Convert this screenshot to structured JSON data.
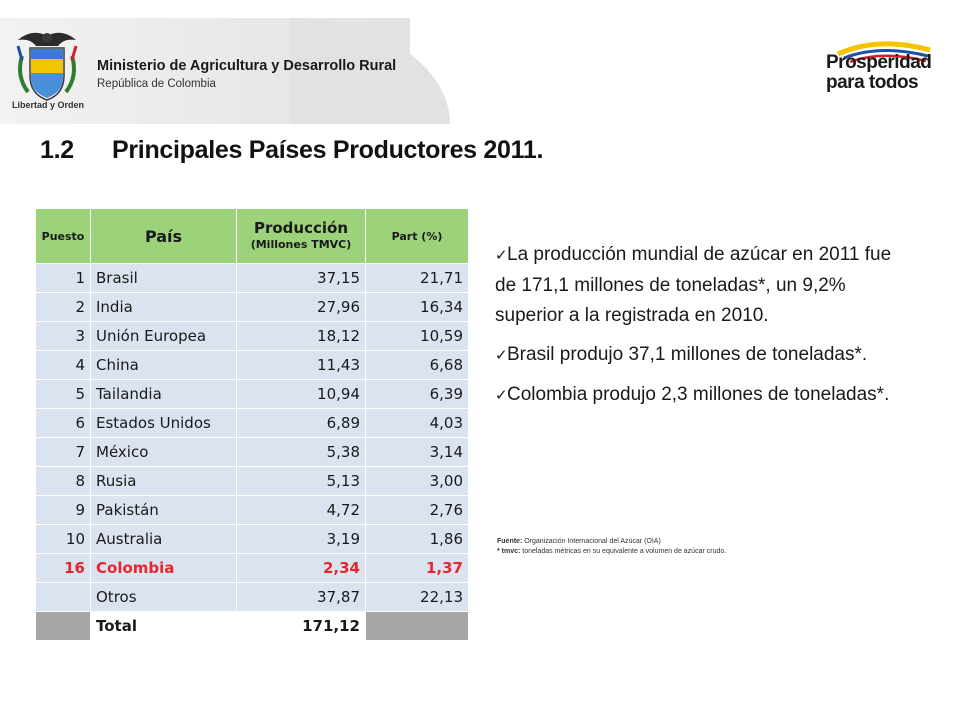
{
  "header": {
    "ministry": "Ministerio de Agricultura y Desarrollo Rural",
    "republic": "República de Colombia",
    "motto": "Libertad y Orden",
    "logo_line1": "Prosperidad",
    "logo_line2": "para todos",
    "colors": {
      "logo_yellow": "#f5c400",
      "logo_blue": "#1d4fa3",
      "logo_red": "#d42027"
    }
  },
  "title": {
    "number": "1.2",
    "text": "Principales Países Productores 2011."
  },
  "table": {
    "headers": {
      "rank": "Puesto",
      "country": "País",
      "production": "Producción",
      "production_unit": "(Millones TMVC)",
      "share": "Part (%)"
    },
    "rows": [
      {
        "rank": "1",
        "country": "Brasil",
        "production": "37,15",
        "share": "21,71"
      },
      {
        "rank": "2",
        "country": "India",
        "production": "27,96",
        "share": "16,34"
      },
      {
        "rank": "3",
        "country": "Unión Europea",
        "production": "18,12",
        "share": "10,59"
      },
      {
        "rank": "4",
        "country": "China",
        "production": "11,43",
        "share": "6,68"
      },
      {
        "rank": "5",
        "country": "Tailandia",
        "production": "10,94",
        "share": "6,39"
      },
      {
        "rank": "6",
        "country": "Estados Unidos",
        "production": "6,89",
        "share": "4,03"
      },
      {
        "rank": "7",
        "country": "México",
        "production": "5,38",
        "share": "3,14"
      },
      {
        "rank": "8",
        "country": "Rusia",
        "production": "5,13",
        "share": "3,00"
      },
      {
        "rank": "9",
        "country": "Pakistán",
        "production": "4,72",
        "share": "2,76"
      },
      {
        "rank": "10",
        "country": "Australia",
        "production": "3,19",
        "share": "1,86"
      },
      {
        "rank": "16",
        "country": "Colombia",
        "production": "2,34",
        "share": "1,37"
      },
      {
        "rank": "",
        "country": "Otros",
        "production": "37,87",
        "share": "22,13"
      }
    ],
    "total": {
      "label": "Total",
      "production": "171,12"
    },
    "colors": {
      "header": "#9bd27a",
      "row": "#dce3f0",
      "highlight": "#e8262b",
      "total": "#a6a6a6"
    }
  },
  "bullets": [
    "La producción mundial de azúcar en 2011 fue de 171,1 millones de toneladas*, un 9,2% superior a la registrada en 2010.",
    "Brasil produjo 37,1 millones de toneladas*.",
    "Colombia produjo 2,3 millones de toneladas*."
  ],
  "source": {
    "label1": "Fuente:",
    "text1": "Organización Internacional del Azúcar (OIA)",
    "label2": "* tmvc:",
    "text2": "toneladas métricas en su equivalente a volumen de azúcar crudo."
  }
}
